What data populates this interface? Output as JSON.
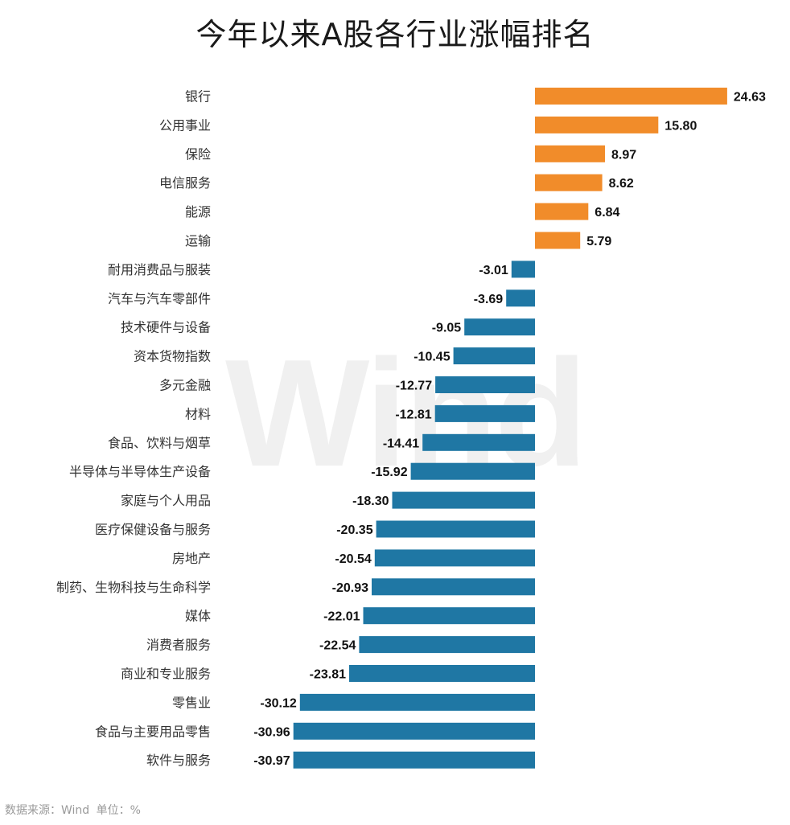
{
  "title": "今年以来A股各行业涨幅排名",
  "watermark": "Wind",
  "footer": {
    "source": "数据来源：Wind",
    "unit": "单位：%"
  },
  "colors": {
    "positive": "#F18C2A",
    "negative": "#1F77A4"
  },
  "chart_data": {
    "type": "bar",
    "orientation": "horizontal",
    "title": "今年以来A股各行业涨幅排名",
    "xlabel": "",
    "ylabel": "",
    "unit": "%",
    "xlim": [
      -31,
      24.63
    ],
    "grid": false,
    "categories": [
      "银行",
      "公用事业",
      "保险",
      "电信服务",
      "能源",
      "运输",
      "耐用消费品与服装",
      "汽车与汽车零部件",
      "技术硬件与设备",
      "资本货物指数",
      "多元金融",
      "材料",
      "食品、饮料与烟草",
      "半导体与半导体生产设备",
      "家庭与个人用品",
      "医疗保健设备与服务",
      "房地产",
      "制药、生物科技与生命科学",
      "媒体",
      "消费者服务",
      "商业和专业服务",
      "零售业",
      "食品与主要用品零售",
      "软件与服务"
    ],
    "values": [
      24.63,
      15.8,
      8.97,
      8.62,
      6.84,
      5.79,
      -3.01,
      -3.69,
      -9.05,
      -10.45,
      -12.77,
      -12.81,
      -14.41,
      -15.92,
      -18.3,
      -20.35,
      -20.54,
      -20.93,
      -22.01,
      -22.54,
      -23.81,
      -30.12,
      -30.96,
      -30.97
    ],
    "value_labels": [
      "24.63",
      "15.80",
      "8.97",
      "8.62",
      "6.84",
      "5.79",
      "-3.01",
      "-3.69",
      "-9.05",
      "-10.45",
      "-12.77",
      "-12.81",
      "-14.41",
      "-15.92",
      "-18.30",
      "-20.35",
      "-20.54",
      "-20.93",
      "-22.01",
      "-22.54",
      "-23.81",
      "-30.12",
      "-30.96",
      "-30.97"
    ]
  }
}
